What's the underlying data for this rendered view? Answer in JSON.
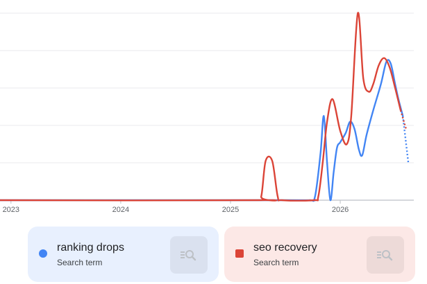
{
  "chart_data": {
    "type": "line",
    "x_ticks": [
      "2023",
      "2024",
      "2025",
      "2026"
    ],
    "xlim": [
      2022.9,
      2026.67
    ],
    "ylim": [
      0,
      100
    ],
    "gridlines": [
      0,
      20,
      40,
      60,
      80,
      100
    ],
    "legend": "bottom",
    "series": [
      {
        "name": "ranking drops",
        "color": "#4285f4",
        "solid_until": 2026.57,
        "points": [
          [
            2022.9,
            0
          ],
          [
            2025.5,
            0
          ],
          [
            2025.72,
            0
          ],
          [
            2025.77,
            2
          ],
          [
            2025.82,
            25
          ],
          [
            2025.85,
            45
          ],
          [
            2025.88,
            20
          ],
          [
            2025.91,
            0
          ],
          [
            2025.94,
            15
          ],
          [
            2025.97,
            28
          ],
          [
            2026.0,
            31
          ],
          [
            2026.05,
            36
          ],
          [
            2026.09,
            42
          ],
          [
            2026.13,
            38
          ],
          [
            2026.17,
            27
          ],
          [
            2026.2,
            24
          ],
          [
            2026.24,
            35
          ],
          [
            2026.3,
            48
          ],
          [
            2026.37,
            62
          ],
          [
            2026.42,
            74
          ],
          [
            2026.46,
            73
          ],
          [
            2026.5,
            62
          ],
          [
            2026.53,
            54
          ],
          [
            2026.57,
            45
          ],
          [
            2026.62,
            20
          ]
        ]
      },
      {
        "name": "seo recovery",
        "color": "#db4437",
        "solid_until": 2026.57,
        "points": [
          [
            2022.9,
            0
          ],
          [
            2025.23,
            0
          ],
          [
            2025.28,
            2
          ],
          [
            2025.32,
            21
          ],
          [
            2025.38,
            21
          ],
          [
            2025.43,
            2
          ],
          [
            2025.47,
            0
          ],
          [
            2025.76,
            0
          ],
          [
            2025.8,
            2
          ],
          [
            2025.84,
            20
          ],
          [
            2025.88,
            42
          ],
          [
            2025.93,
            54
          ],
          [
            2026.0,
            37
          ],
          [
            2026.06,
            30
          ],
          [
            2026.1,
            45
          ],
          [
            2026.16,
            100
          ],
          [
            2026.21,
            65
          ],
          [
            2026.26,
            58
          ],
          [
            2026.3,
            62
          ],
          [
            2026.35,
            72
          ],
          [
            2026.4,
            76
          ],
          [
            2026.45,
            71
          ],
          [
            2026.5,
            60
          ],
          [
            2026.55,
            48
          ],
          [
            2026.6,
            38
          ]
        ]
      }
    ]
  },
  "legend_cards": [
    {
      "term": "ranking drops",
      "type_label": "Search term",
      "color": "#4285f4",
      "icon": "explore-search-icon"
    },
    {
      "term": "seo recovery",
      "type_label": "Search term",
      "color": "#db4437",
      "icon": "explore-search-icon"
    }
  ]
}
